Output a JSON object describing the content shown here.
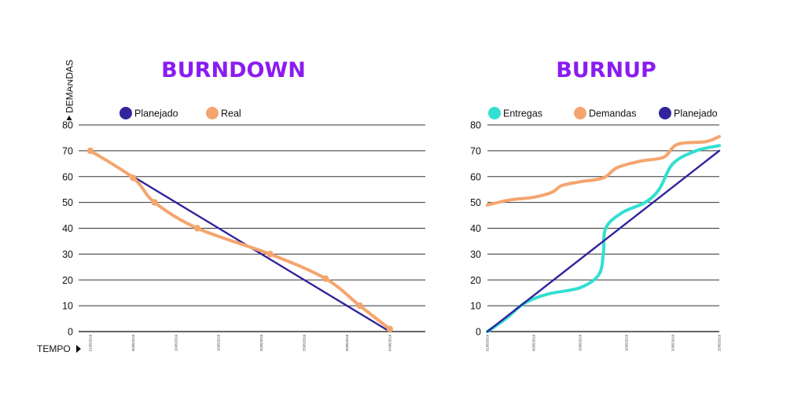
{
  "colors": {
    "title": "#8a1cf0",
    "planned": "#31249c",
    "real": "#f4a56e",
    "deliveries": "#33dfd1",
    "grid": "#333333"
  },
  "chart_data": [
    {
      "id": "burndown",
      "type": "line",
      "title": "BURNDOWN",
      "xlabel": "TEMPO",
      "ylabel": "DEMANDAS",
      "ylim": [
        0,
        80
      ],
      "yticks": [
        0,
        10,
        20,
        30,
        40,
        50,
        60,
        70,
        80
      ],
      "categories": [
        "01/05/2019",
        "05/05/2019",
        "10/05/2019",
        "15/05/2019",
        "20/05/2019",
        "25/05/2019",
        "30/05/2019",
        "04/06/2019"
      ],
      "legend": [
        "Planejado",
        "Real"
      ],
      "series": [
        {
          "name": "Planejado",
          "color_key": "planned",
          "points": [
            [
              0,
              70
            ],
            [
              7,
              0
            ]
          ]
        },
        {
          "name": "Real",
          "color_key": "real",
          "markers": true,
          "points": [
            [
              0,
              70
            ],
            [
              1,
              59.5
            ],
            [
              1.5,
              50
            ],
            [
              2.5,
              40
            ],
            [
              4.2,
              30
            ],
            [
              5.5,
              20.5
            ],
            [
              6.3,
              10
            ],
            [
              7,
              1
            ]
          ]
        }
      ]
    },
    {
      "id": "burnup",
      "type": "line",
      "title": "BURNUP",
      "xlabel": "",
      "ylabel": "",
      "ylim": [
        0,
        80
      ],
      "yticks": [
        0,
        10,
        20,
        30,
        40,
        50,
        60,
        70,
        80
      ],
      "categories": [
        "01/05/2019",
        "05/05/2019",
        "10/05/2019",
        "15/05/2019",
        "20/05/2019",
        "25/05/2019"
      ],
      "legend": [
        "Entregas",
        "Demandas",
        "Planejado"
      ],
      "series": [
        {
          "name": "Entregas",
          "color_key": "deliveries",
          "points": [
            [
              0,
              0
            ],
            [
              0.4,
              5
            ],
            [
              0.8,
              11
            ],
            [
              1.3,
              14.5
            ],
            [
              2.0,
              17
            ],
            [
              2.4,
              22
            ],
            [
              2.5,
              30
            ],
            [
              2.55,
              40
            ],
            [
              2.9,
              46
            ],
            [
              3.4,
              50
            ],
            [
              3.7,
              55
            ],
            [
              4.0,
              65
            ],
            [
              4.5,
              70
            ],
            [
              5.0,
              72
            ]
          ]
        },
        {
          "name": "Demandas",
          "color_key": "real",
          "points": [
            [
              0,
              49
            ],
            [
              0.5,
              51
            ],
            [
              1.0,
              52
            ],
            [
              1.4,
              54
            ],
            [
              1.6,
              56.5
            ],
            [
              2.0,
              58
            ],
            [
              2.5,
              59.5
            ],
            [
              2.8,
              63.5
            ],
            [
              3.3,
              66
            ],
            [
              3.8,
              67.5
            ],
            [
              4.1,
              72.5
            ],
            [
              4.7,
              73.5
            ],
            [
              5.0,
              75.5
            ]
          ]
        },
        {
          "name": "Planejado",
          "color_key": "planned",
          "points": [
            [
              0,
              0
            ],
            [
              5,
              70
            ]
          ]
        }
      ]
    }
  ]
}
